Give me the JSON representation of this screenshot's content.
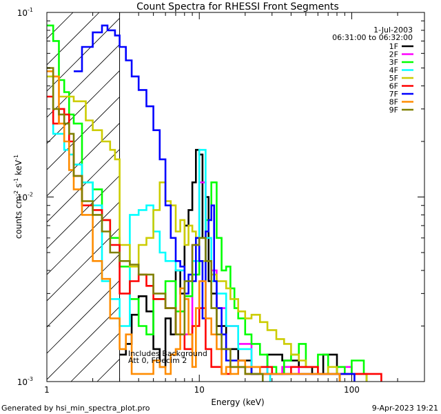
{
  "chart_data": {
    "type": "line",
    "title": "Count Spectra for RHESSI Front Segments",
    "xlabel": "Energy (keV)",
    "ylabel": {
      "base": "counts cm",
      "exp1": "-2",
      "mid1": " s",
      "exp2": "-1",
      "mid2": " keV",
      "exp3": "-1"
    },
    "x_scale": "log",
    "y_scale": "log",
    "xlim": [
      1,
      300
    ],
    "ylim": [
      0.001,
      0.1
    ],
    "x_ticks": [
      {
        "v": 1,
        "label": "1"
      },
      {
        "v": 10,
        "label": "10"
      },
      {
        "v": 100,
        "label": "100"
      }
    ],
    "y_ticks": [
      {
        "v": 0.001,
        "m": "10",
        "e": "-3"
      },
      {
        "v": 0.01,
        "m": "10",
        "e": "-2"
      },
      {
        "v": 0.1,
        "m": "10",
        "e": "-1"
      }
    ],
    "date": "1-Jul-2003",
    "time_range": "06:31:00 to 06:32:00",
    "annotation": [
      "Includes Background",
      "Att 0, FDecim 2"
    ],
    "hatch_region_max_keV": 3,
    "footer_left": "Generated by hsi_min_spectra_plot.pro",
    "footer_right": "9-Apr-2023 19:21",
    "series": [
      {
        "name": "1F",
        "color": "#000000",
        "x": [
          3,
          3.3,
          3.6,
          4,
          4.5,
          5,
          5.5,
          6,
          6.5,
          7,
          7.5,
          8,
          8.5,
          9,
          9.5,
          10,
          10.5,
          11,
          11.5,
          12,
          13,
          15,
          18,
          22,
          28,
          35,
          45,
          55,
          65,
          80
        ],
        "y": [
          0.0014,
          0.0016,
          0.0023,
          0.0029,
          0.0024,
          0.0015,
          0.0012,
          0.0022,
          0.0018,
          0.004,
          0.003,
          0.007,
          0.0085,
          0.012,
          0.018,
          0.017,
          0.006,
          0.01,
          0.0035,
          0.003,
          0.002,
          0.0015,
          0.0013,
          0.0011,
          0.0014,
          0.0013,
          0.0012,
          0.0011,
          0.0014,
          0.0011
        ]
      },
      {
        "name": "2F",
        "color": "#ff00ff",
        "x": [
          8,
          9,
          10,
          11,
          12,
          13,
          15,
          18,
          22,
          28,
          35,
          45,
          60,
          80,
          100,
          120
        ],
        "y": [
          0.0018,
          0.0055,
          0.012,
          0.006,
          0.004,
          0.0025,
          0.002,
          0.0016,
          0.0012,
          0.0011,
          0.0012,
          0.0011,
          0.0011,
          0.0012,
          0.0011,
          0.0011
        ]
      },
      {
        "name": "3F",
        "color": "#00ff00",
        "x": [
          1,
          1.1,
          1.2,
          1.3,
          1.4,
          1.5,
          1.7,
          2,
          2.3,
          2.6,
          3,
          3.5,
          4,
          4.5,
          5,
          6,
          7,
          8,
          9,
          10,
          11,
          12,
          13,
          14,
          15,
          16,
          17,
          18,
          20,
          22,
          25,
          28,
          32,
          36,
          40,
          45,
          50,
          60,
          70,
          80,
          90,
          100,
          120
        ],
        "y": [
          0.085,
          0.07,
          0.043,
          0.037,
          0.028,
          0.025,
          0.012,
          0.011,
          0.0075,
          0.006,
          0.0042,
          0.0028,
          0.002,
          0.0018,
          0.0028,
          0.0035,
          0.0024,
          0.0029,
          0.0038,
          0.0045,
          0.0075,
          0.012,
          0.006,
          0.004,
          0.0042,
          0.0032,
          0.0025,
          0.0022,
          0.0018,
          0.0016,
          0.0014,
          0.0012,
          0.0011,
          0.0013,
          0.0014,
          0.0016,
          0.0012,
          0.0014,
          0.0011,
          0.0012,
          0.0011,
          0.0013,
          0.0011
        ]
      },
      {
        "name": "4F",
        "color": "#00ffff",
        "x": [
          1,
          1.1,
          1.2,
          1.3,
          1.4,
          1.5,
          1.7,
          2,
          2.3,
          2.6,
          3,
          3.5,
          4,
          4.5,
          5,
          5.5,
          6,
          7,
          8,
          9,
          10,
          11,
          12,
          13,
          15,
          18,
          22,
          28
        ],
        "y": [
          0.045,
          0.022,
          0.022,
          0.018,
          0.017,
          0.015,
          0.012,
          0.009,
          0.0035,
          0.0028,
          0.002,
          0.008,
          0.0085,
          0.009,
          0.0065,
          0.005,
          0.0045,
          0.004,
          0.0035,
          0.0045,
          0.018,
          0.006,
          0.0035,
          0.003,
          0.002,
          0.0015,
          0.0012,
          0.0011
        ]
      },
      {
        "name": "5F",
        "color": "#cccc00",
        "x": [
          1,
          1.2,
          1.5,
          1.8,
          2,
          2.3,
          2.6,
          2.8,
          3,
          3.5,
          4,
          4.5,
          5,
          5.5,
          6,
          6.5,
          7,
          7.5,
          8,
          8.5,
          9,
          9.5,
          10,
          11,
          12,
          13,
          14,
          15,
          16,
          18,
          20,
          22,
          25,
          28,
          32,
          36,
          40,
          45,
          50,
          60,
          70,
          80,
          90,
          100,
          120
        ],
        "y": [
          0.045,
          0.035,
          0.033,
          0.026,
          0.023,
          0.02,
          0.018,
          0.016,
          0.0055,
          0.0042,
          0.0055,
          0.006,
          0.0085,
          0.012,
          0.0095,
          0.009,
          0.0065,
          0.0075,
          0.0055,
          0.007,
          0.0065,
          0.0055,
          0.0045,
          0.0045,
          0.0038,
          0.0035,
          0.0035,
          0.0032,
          0.0028,
          0.0024,
          0.0022,
          0.0023,
          0.0021,
          0.0019,
          0.0017,
          0.0016,
          0.0014,
          0.0013,
          0.0012,
          0.0011,
          0.0012,
          0.0011,
          0.0011,
          0.0011,
          0.0011
        ]
      },
      {
        "name": "6F",
        "color": "#ff0000",
        "x": [
          1,
          1.1,
          1.2,
          1.3,
          1.4,
          1.5,
          1.7,
          2,
          2.3,
          2.6,
          3,
          3.5,
          4,
          4.5,
          5,
          6,
          7,
          8,
          9,
          10,
          11,
          12,
          14,
          16,
          20,
          25,
          30,
          40,
          60,
          80,
          100,
          150
        ],
        "y": [
          0.035,
          0.025,
          0.03,
          0.028,
          0.02,
          0.013,
          0.009,
          0.0085,
          0.0075,
          0.0055,
          0.003,
          0.0035,
          0.0038,
          0.0033,
          0.0028,
          0.0025,
          0.0018,
          0.0015,
          0.002,
          0.0025,
          0.0015,
          0.0012,
          0.0011,
          0.0012,
          0.0011,
          0.0012,
          0.0011,
          0.0012,
          0.0011,
          0.0011,
          0.0011,
          0.0011
        ]
      },
      {
        "name": "7F",
        "color": "#0000ff",
        "x": [
          1.5,
          1.7,
          2,
          2.3,
          2.5,
          2.8,
          3,
          3.3,
          3.6,
          4,
          4.5,
          5,
          5.5,
          6,
          6.5,
          7,
          7.5,
          8,
          8.5,
          9,
          9.5,
          10,
          10.5,
          11,
          11.5,
          12,
          12.5,
          13,
          14,
          15,
          18,
          22,
          30,
          40,
          60,
          80,
          100
        ],
        "y": [
          0.048,
          0.065,
          0.078,
          0.085,
          0.08,
          0.075,
          0.065,
          0.055,
          0.045,
          0.038,
          0.031,
          0.023,
          0.016,
          0.009,
          0.006,
          0.0045,
          0.0042,
          0.003,
          0.0038,
          0.0035,
          0.006,
          0.0045,
          0.0022,
          0.0065,
          0.0075,
          0.009,
          0.0035,
          0.0025,
          0.0018,
          0.0013,
          0.0012,
          0.0011,
          0.0011,
          0.0011,
          0.0011,
          0.0011,
          0.0011
        ]
      },
      {
        "name": "8F",
        "color": "#ff8c00",
        "x": [
          1,
          1.1,
          1.2,
          1.3,
          1.4,
          1.5,
          1.7,
          2,
          2.3,
          2.6,
          3,
          3.3,
          3.6,
          4,
          4.5,
          5,
          5.5,
          6,
          6.5,
          7,
          7.5,
          8,
          8.5,
          9,
          9.5,
          10,
          11,
          12,
          13,
          14,
          15,
          16,
          18,
          20,
          25,
          30,
          40,
          50,
          60,
          80
        ],
        "y": [
          0.048,
          0.045,
          0.025,
          0.02,
          0.014,
          0.011,
          0.008,
          0.0045,
          0.0036,
          0.0022,
          0.0015,
          0.0018,
          0.0011,
          0.0011,
          0.0011,
          0.0013,
          0.0012,
          0.0011,
          0.0014,
          0.0015,
          0.0032,
          0.0028,
          0.0018,
          0.0012,
          0.0025,
          0.0035,
          0.0022,
          0.0018,
          0.0015,
          0.0011,
          0.0012,
          0.0011,
          0.0013,
          0.0012,
          0.0011,
          0.0011,
          0.0011,
          0.0011,
          0.0011,
          0.0011
        ]
      },
      {
        "name": "9F",
        "color": "#808000",
        "x": [
          1,
          1.1,
          1.2,
          1.3,
          1.4,
          1.5,
          1.7,
          2,
          2.3,
          2.6,
          3,
          3.5,
          4,
          5,
          6,
          7,
          8,
          9,
          10,
          11,
          12,
          13,
          14,
          16,
          20,
          25
        ],
        "y": [
          0.05,
          0.03,
          0.028,
          0.025,
          0.022,
          0.013,
          0.0095,
          0.008,
          0.0065,
          0.005,
          0.0045,
          0.0043,
          0.0038,
          0.003,
          0.0025,
          0.0018,
          0.0035,
          0.0055,
          0.006,
          0.0045,
          0.0025,
          0.0018,
          0.0015,
          0.0012,
          0.0011,
          0.0011
        ]
      }
    ]
  }
}
